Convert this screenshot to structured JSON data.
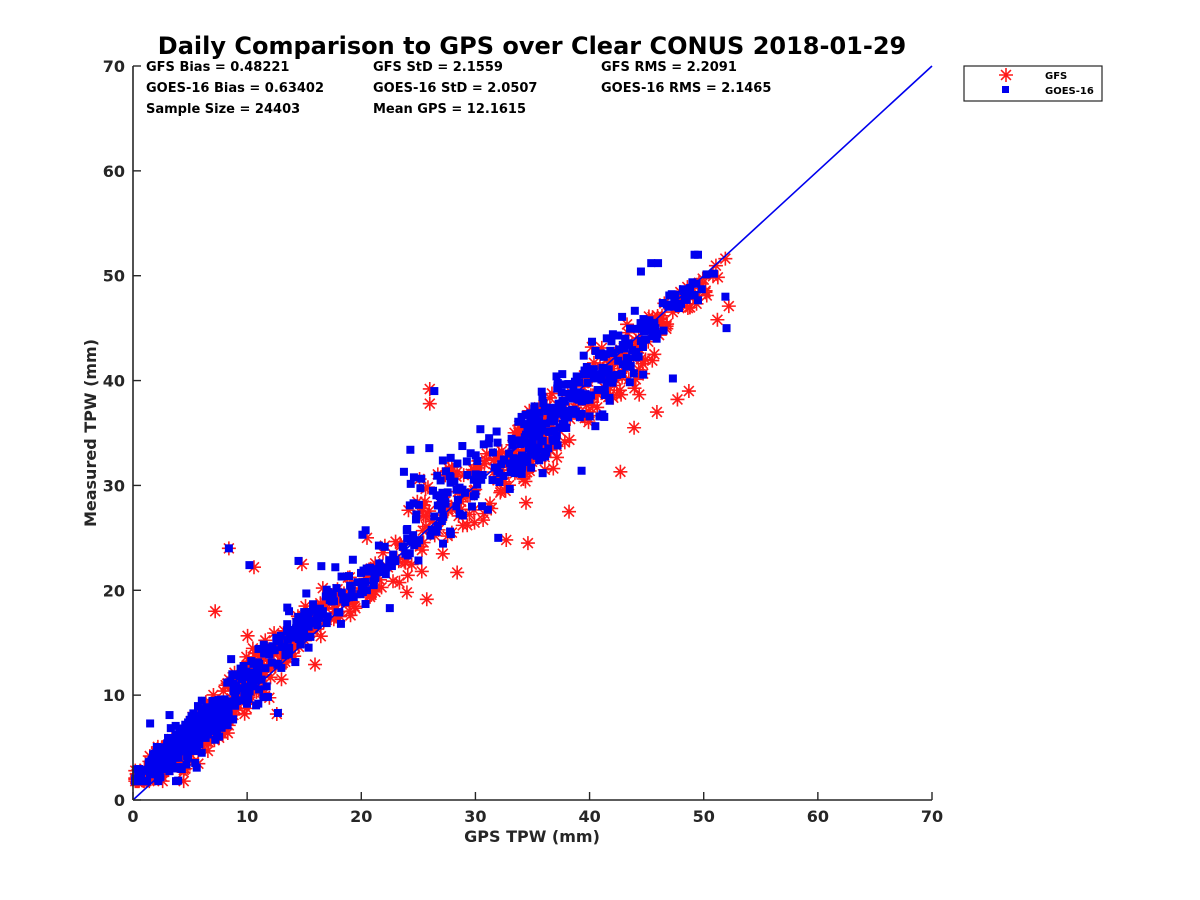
{
  "chart_data": {
    "type": "scatter",
    "title": "Daily Comparison to GPS over Clear CONUS 2018-01-29",
    "xlabel": "GPS TPW (mm)",
    "ylabel": "Measured TPW (mm)",
    "xlim": [
      0,
      70
    ],
    "ylim": [
      0,
      70
    ],
    "xticks": [
      "0",
      "10",
      "20",
      "30",
      "40",
      "50",
      "60",
      "70"
    ],
    "yticks": [
      "0",
      "10",
      "20",
      "30",
      "40",
      "50",
      "60",
      "70"
    ],
    "grid": false,
    "legend_placement": "outside-top-right",
    "stats": [
      [
        "GFS Bias = 0.48221",
        "GFS StD = 2.1559",
        "GFS RMS = 2.2091"
      ],
      [
        "GOES-16 Bias = 0.63402",
        "GOES-16 StD = 2.0507",
        "GOES-16 RMS = 2.1465"
      ],
      [
        "Sample Size = 24403",
        "Mean GPS = 12.1615",
        ""
      ]
    ],
    "reference_line": {
      "name": "1:1 line",
      "x": [
        0,
        70
      ],
      "y": [
        0,
        70
      ],
      "color": "#0000ee"
    },
    "series": [
      {
        "name": "GFS",
        "marker": "asterisk",
        "color": "#ff1a1a",
        "clusters": [
          {
            "cx": 3,
            "cy": 4,
            "sx": 1.3,
            "sy": 1.2,
            "n": 160
          },
          {
            "cx": 6.5,
            "cy": 7,
            "sx": 2.0,
            "sy": 1.8,
            "n": 150
          },
          {
            "cx": 11,
            "cy": 12,
            "sx": 2.2,
            "sy": 2.3,
            "n": 90
          },
          {
            "cx": 16,
            "cy": 17,
            "sx": 2.0,
            "sy": 1.8,
            "n": 55
          },
          {
            "cx": 21,
            "cy": 21,
            "sx": 1.8,
            "sy": 1.6,
            "n": 40
          },
          {
            "cx": 27,
            "cy": 28,
            "sx": 2.2,
            "sy": 3.2,
            "n": 60
          },
          {
            "cx": 35,
            "cy": 34,
            "sx": 3.0,
            "sy": 3.0,
            "n": 170
          },
          {
            "cx": 42,
            "cy": 40,
            "sx": 2.0,
            "sy": 3.0,
            "n": 55
          },
          {
            "cx": 47,
            "cy": 46.5,
            "sx": 2.2,
            "sy": 1.2,
            "n": 45
          }
        ],
        "points": [
          {
            "x": 8.4,
            "y": 24
          },
          {
            "x": 7.2,
            "y": 18
          },
          {
            "x": 10.6,
            "y": 22.2
          },
          {
            "x": 14.8,
            "y": 22.5
          },
          {
            "x": 12.6,
            "y": 8.2
          },
          {
            "x": 23.5,
            "y": 24.3
          },
          {
            "x": 25.3,
            "y": 21.8
          },
          {
            "x": 28.4,
            "y": 21.7
          },
          {
            "x": 26,
            "y": 39.2
          },
          {
            "x": 26,
            "y": 37.8
          },
          {
            "x": 32.7,
            "y": 24.8
          },
          {
            "x": 34.6,
            "y": 24.5
          },
          {
            "x": 43.9,
            "y": 35.5
          },
          {
            "x": 45.9,
            "y": 37
          },
          {
            "x": 48.7,
            "y": 39
          },
          {
            "x": 47.7,
            "y": 38.2
          },
          {
            "x": 51.2,
            "y": 45.8
          },
          {
            "x": 52.2,
            "y": 47.1
          },
          {
            "x": 40.2,
            "y": 43.2
          },
          {
            "x": 38.2,
            "y": 27.5
          },
          {
            "x": 42.7,
            "y": 31.3
          },
          {
            "x": 20.5,
            "y": 25
          },
          {
            "x": 24,
            "y": 19.8
          },
          {
            "x": 0.2,
            "y": 2.8
          }
        ]
      },
      {
        "name": "GOES-16",
        "marker": "square",
        "color": "#0000ee",
        "clusters": [
          {
            "cx": 3,
            "cy": 4.3,
            "sx": 1.3,
            "sy": 1.2,
            "n": 170
          },
          {
            "cx": 6.5,
            "cy": 7.3,
            "sx": 2.0,
            "sy": 1.8,
            "n": 160
          },
          {
            "cx": 11,
            "cy": 12.5,
            "sx": 2.2,
            "sy": 2.3,
            "n": 95
          },
          {
            "cx": 16,
            "cy": 17.5,
            "sx": 2.0,
            "sy": 1.8,
            "n": 55
          },
          {
            "cx": 21,
            "cy": 21.3,
            "sx": 1.8,
            "sy": 1.6,
            "n": 45
          },
          {
            "cx": 27,
            "cy": 29,
            "sx": 2.2,
            "sy": 3.5,
            "n": 70
          },
          {
            "cx": 35.5,
            "cy": 35,
            "sx": 3.0,
            "sy": 3.0,
            "n": 190
          },
          {
            "cx": 42,
            "cy": 41.5,
            "sx": 2.0,
            "sy": 3.0,
            "n": 65
          },
          {
            "cx": 47,
            "cy": 47,
            "sx": 2.2,
            "sy": 1.4,
            "n": 45
          }
        ],
        "points": [
          {
            "x": 8.4,
            "y": 24
          },
          {
            "x": 10.2,
            "y": 22.4
          },
          {
            "x": 14.5,
            "y": 22.8
          },
          {
            "x": 20.1,
            "y": 25.3
          },
          {
            "x": 44.5,
            "y": 50.4
          },
          {
            "x": 45.4,
            "y": 51.2
          },
          {
            "x": 46,
            "y": 51.2
          },
          {
            "x": 49.2,
            "y": 52
          },
          {
            "x": 49.5,
            "y": 52
          },
          {
            "x": 52,
            "y": 45
          },
          {
            "x": 51.9,
            "y": 48
          },
          {
            "x": 40.1,
            "y": 40.6
          },
          {
            "x": 32,
            "y": 25
          },
          {
            "x": 39.3,
            "y": 31.4
          },
          {
            "x": 26.4,
            "y": 39
          },
          {
            "x": 24.3,
            "y": 33.4
          },
          {
            "x": 22.5,
            "y": 18.3
          },
          {
            "x": 12.7,
            "y": 8.3
          },
          {
            "x": 16.5,
            "y": 22.3
          },
          {
            "x": 1.5,
            "y": 7.3
          },
          {
            "x": 3.2,
            "y": 8.1
          },
          {
            "x": 48.5,
            "y": 47.7
          },
          {
            "x": 47.3,
            "y": 40.2
          }
        ]
      }
    ]
  }
}
